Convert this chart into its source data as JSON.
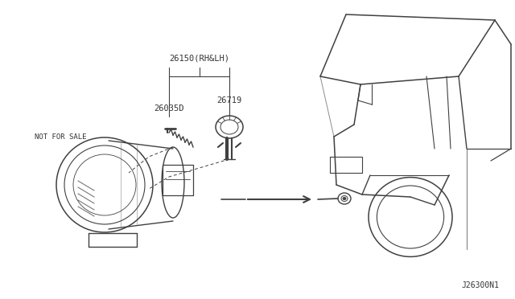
{
  "bg_color": "#ffffff",
  "diagram_code": "J26300N1",
  "line_color": "#404040",
  "text_color": "#333333",
  "label_26150": "26150(RH&LH)",
  "label_26035D": "26035D",
  "label_26719": "26719",
  "label_not_for_sale": "NOT FOR SALE",
  "font_size_labels": 7.5,
  "font_size_code": 7.0
}
